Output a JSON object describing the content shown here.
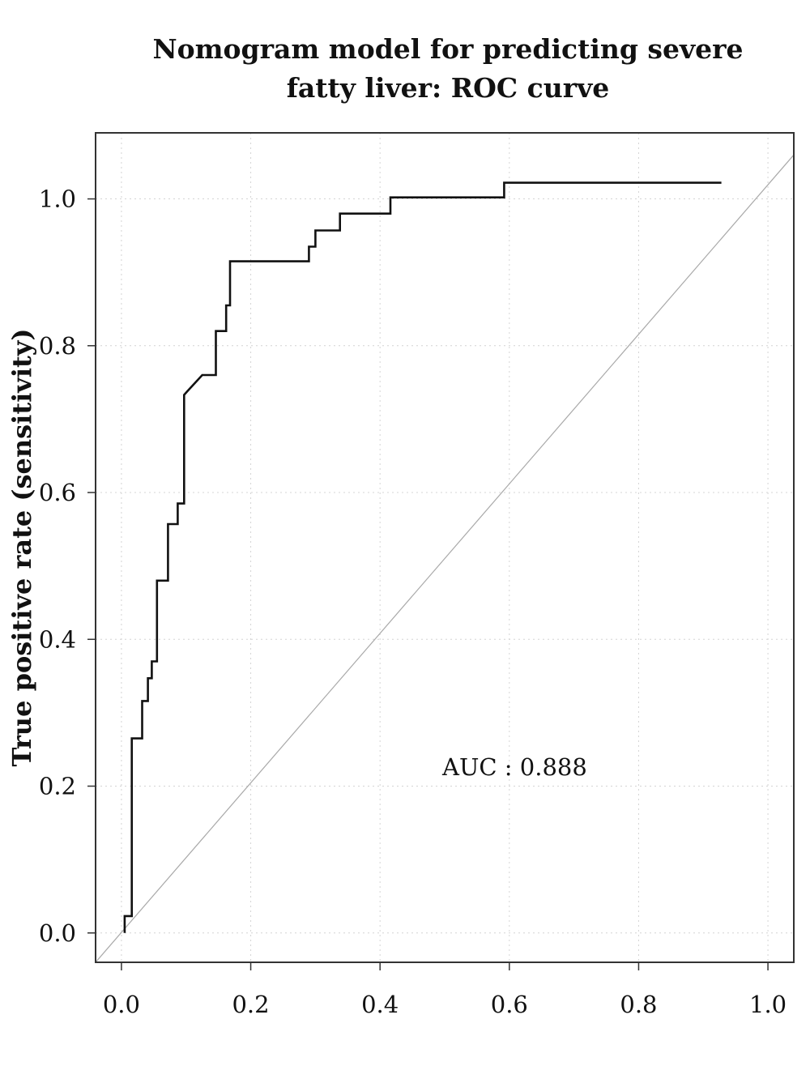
{
  "chart_data": {
    "type": "line",
    "title_lines": [
      "Nomogram model for predicting severe",
      "fatty liver: ROC curve"
    ],
    "ylabel": "True positive rate (sensitivity)",
    "xlabel": "",
    "xlim": [
      -0.04,
      1.04
    ],
    "ylim": [
      -0.04,
      1.09
    ],
    "grid": true,
    "x_ticks": [
      0.0,
      0.2,
      0.4,
      0.6,
      0.8,
      1.0
    ],
    "x_tick_labels": [
      "0.0",
      "0.2",
      "0.4",
      "0.6",
      "0.8",
      "1.0"
    ],
    "y_ticks": [
      0.0,
      0.2,
      0.4,
      0.6,
      0.8,
      1.0
    ],
    "y_tick_labels": [
      "0.0",
      "0.2",
      "0.4",
      "0.6",
      "0.8",
      "1.0"
    ],
    "annotation": "AUC : 0.888",
    "colors": {
      "curve": "#111111",
      "diagonal": "#a8a8a8",
      "grid": "#d4d4d4",
      "frame": "#333333"
    },
    "series": [
      {
        "values": [
          [
            0.005,
            0.0
          ],
          [
            0.005,
            0.023
          ],
          [
            0.016,
            0.023
          ],
          [
            0.016,
            0.265
          ],
          [
            0.032,
            0.265
          ],
          [
            0.032,
            0.316
          ],
          [
            0.041,
            0.316
          ],
          [
            0.041,
            0.347
          ],
          [
            0.047,
            0.347
          ],
          [
            0.047,
            0.37
          ],
          [
            0.055,
            0.37
          ],
          [
            0.055,
            0.48
          ],
          [
            0.072,
            0.48
          ],
          [
            0.072,
            0.557
          ],
          [
            0.087,
            0.557
          ],
          [
            0.087,
            0.585
          ],
          [
            0.097,
            0.585
          ],
          [
            0.097,
            0.733
          ],
          [
            0.102,
            0.738
          ],
          [
            0.125,
            0.76
          ],
          [
            0.146,
            0.76
          ],
          [
            0.146,
            0.82
          ],
          [
            0.162,
            0.82
          ],
          [
            0.162,
            0.855
          ],
          [
            0.168,
            0.855
          ],
          [
            0.168,
            0.915
          ],
          [
            0.29,
            0.915
          ],
          [
            0.29,
            0.935
          ],
          [
            0.3,
            0.935
          ],
          [
            0.3,
            0.957
          ],
          [
            0.338,
            0.957
          ],
          [
            0.338,
            0.98
          ],
          [
            0.416,
            0.98
          ],
          [
            0.416,
            1.002
          ],
          [
            0.592,
            1.002
          ],
          [
            0.592,
            1.022
          ],
          [
            0.928,
            1.022
          ]
        ]
      },
      {
        "values": [
          [
            -0.04,
            -0.04
          ],
          [
            1.04,
            1.06
          ]
        ]
      }
    ]
  }
}
